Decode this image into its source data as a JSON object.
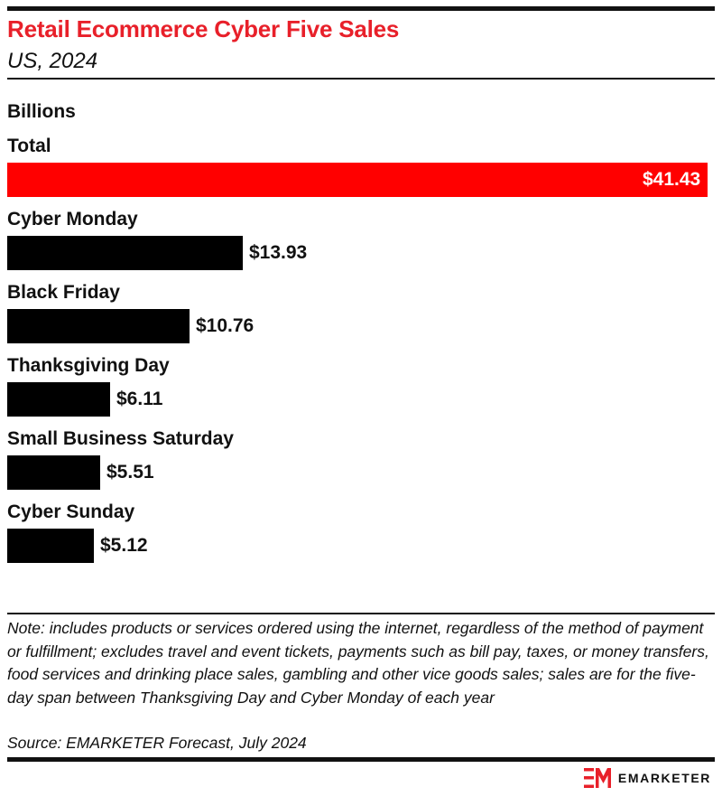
{
  "header": {
    "title": "Retail Ecommerce Cyber Five Sales",
    "subtitle": "US, 2024",
    "unit": "Billions"
  },
  "chart_data": {
    "type": "bar",
    "orientation": "horizontal",
    "title": "Retail Ecommerce Cyber Five Sales",
    "subtitle": "US, 2024",
    "unit": "Billions",
    "categories": [
      "Total",
      "Cyber Monday",
      "Black Friday",
      "Thanksgiving Day",
      "Small Business Saturday",
      "Cyber Sunday"
    ],
    "values": [
      41.43,
      13.93,
      10.76,
      6.11,
      5.51,
      5.12
    ],
    "value_labels": [
      "$41.43",
      "$13.93",
      "$10.76",
      "$6.11",
      "$5.51",
      "$5.12"
    ],
    "highlight_index": 0,
    "colors": {
      "highlight": "#ff0000",
      "bar": "#000000",
      "title": "#e8202a"
    },
    "xlim": [
      0,
      41.43
    ],
    "grid": false
  },
  "footer": {
    "note": "Note: includes products or services ordered using the internet, regardless of the method of payment or fulfillment; excludes travel and event tickets, payments such as bill pay, taxes, or money transfers, food services and drinking place sales, gambling and other vice goods sales; sales are for the five-day span between Thanksgiving Day and Cyber Monday of each year",
    "source": "Source: EMARKETER Forecast, July 2024",
    "brand": "EMARKETER"
  }
}
